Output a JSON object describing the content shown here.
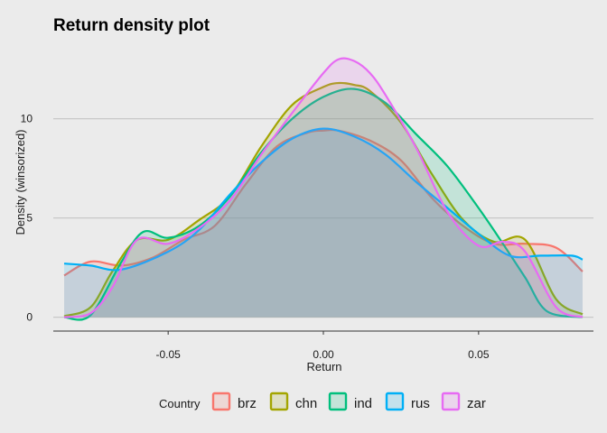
{
  "chart_data": {
    "type": "area",
    "title": "Return density plot",
    "xlabel": "Return",
    "ylabel": "Density (winsorized)",
    "xlim": [
      -0.087,
      0.087
    ],
    "ylim": [
      -0.7,
      13.8
    ],
    "x_ticks": [
      {
        "value": -0.05,
        "label": "-0.05"
      },
      {
        "value": 0.0,
        "label": "0.00"
      },
      {
        "value": 0.05,
        "label": "0.05"
      }
    ],
    "y_ticks": [
      {
        "value": 0,
        "label": "0"
      },
      {
        "value": 5,
        "label": "5"
      },
      {
        "value": 10,
        "label": "10"
      }
    ],
    "grid": "horizontal",
    "legend": {
      "title": "Country",
      "position": "bottom"
    },
    "series": [
      {
        "name": "brz",
        "color": "#f8766d",
        "x": [
          -0.0835,
          -0.075,
          -0.065,
          -0.055,
          -0.045,
          -0.035,
          -0.025,
          -0.015,
          -0.005,
          0.0,
          0.005,
          0.015,
          0.025,
          0.035,
          0.045,
          0.055,
          0.065,
          0.075,
          0.0835
        ],
        "y": [
          2.1,
          2.8,
          2.6,
          3.0,
          3.9,
          4.6,
          6.7,
          8.6,
          9.3,
          9.4,
          9.4,
          8.9,
          7.9,
          6.0,
          4.6,
          3.7,
          3.7,
          3.5,
          2.3
        ]
      },
      {
        "name": "chn",
        "color": "#a3a500",
        "x": [
          -0.0835,
          -0.075,
          -0.068,
          -0.06,
          -0.05,
          -0.04,
          -0.03,
          -0.02,
          -0.01,
          0.0,
          0.005,
          0.01,
          0.015,
          0.025,
          0.035,
          0.045,
          0.055,
          0.065,
          0.075,
          0.0835
        ],
        "y": [
          0.05,
          0.5,
          2.3,
          3.9,
          3.9,
          4.9,
          6.1,
          8.6,
          10.7,
          11.6,
          11.8,
          11.7,
          11.4,
          9.8,
          7.2,
          4.9,
          3.8,
          3.9,
          0.9,
          0.15
        ]
      },
      {
        "name": "ind",
        "color": "#00bf7d",
        "x": [
          -0.0835,
          -0.075,
          -0.065,
          -0.058,
          -0.05,
          -0.04,
          -0.03,
          -0.02,
          -0.01,
          0.0,
          0.01,
          0.02,
          0.03,
          0.04,
          0.05,
          0.057,
          0.065,
          0.072,
          0.0835
        ],
        "y": [
          0.0,
          0.1,
          2.8,
          4.3,
          4.0,
          4.6,
          6.1,
          8.3,
          10.0,
          11.1,
          11.5,
          10.8,
          9.2,
          7.6,
          5.5,
          3.9,
          2.0,
          0.3,
          0.0
        ]
      },
      {
        "name": "rus",
        "color": "#00b0f6",
        "x": [
          -0.0835,
          -0.075,
          -0.065,
          -0.05,
          -0.04,
          -0.03,
          -0.02,
          -0.01,
          0.0,
          0.01,
          0.02,
          0.03,
          0.04,
          0.05,
          0.06,
          0.07,
          0.08,
          0.0835
        ],
        "y": [
          2.7,
          2.6,
          2.4,
          3.3,
          4.4,
          6.2,
          7.8,
          9.0,
          9.5,
          9.1,
          8.2,
          6.8,
          5.5,
          4.2,
          3.1,
          3.1,
          3.1,
          2.9
        ]
      },
      {
        "name": "zar",
        "color": "#e76bf3",
        "x": [
          -0.0835,
          -0.075,
          -0.068,
          -0.06,
          -0.05,
          -0.04,
          -0.03,
          -0.02,
          -0.01,
          0.0,
          0.005,
          0.01,
          0.015,
          0.02,
          0.03,
          0.04,
          0.05,
          0.058,
          0.065,
          0.075,
          0.0835
        ],
        "y": [
          0.0,
          0.2,
          1.5,
          3.9,
          3.7,
          4.5,
          5.9,
          8.2,
          10.3,
          12.3,
          13.0,
          12.9,
          12.3,
          11.2,
          8.5,
          5.3,
          3.6,
          3.8,
          3.3,
          0.5,
          0.0
        ]
      }
    ]
  }
}
